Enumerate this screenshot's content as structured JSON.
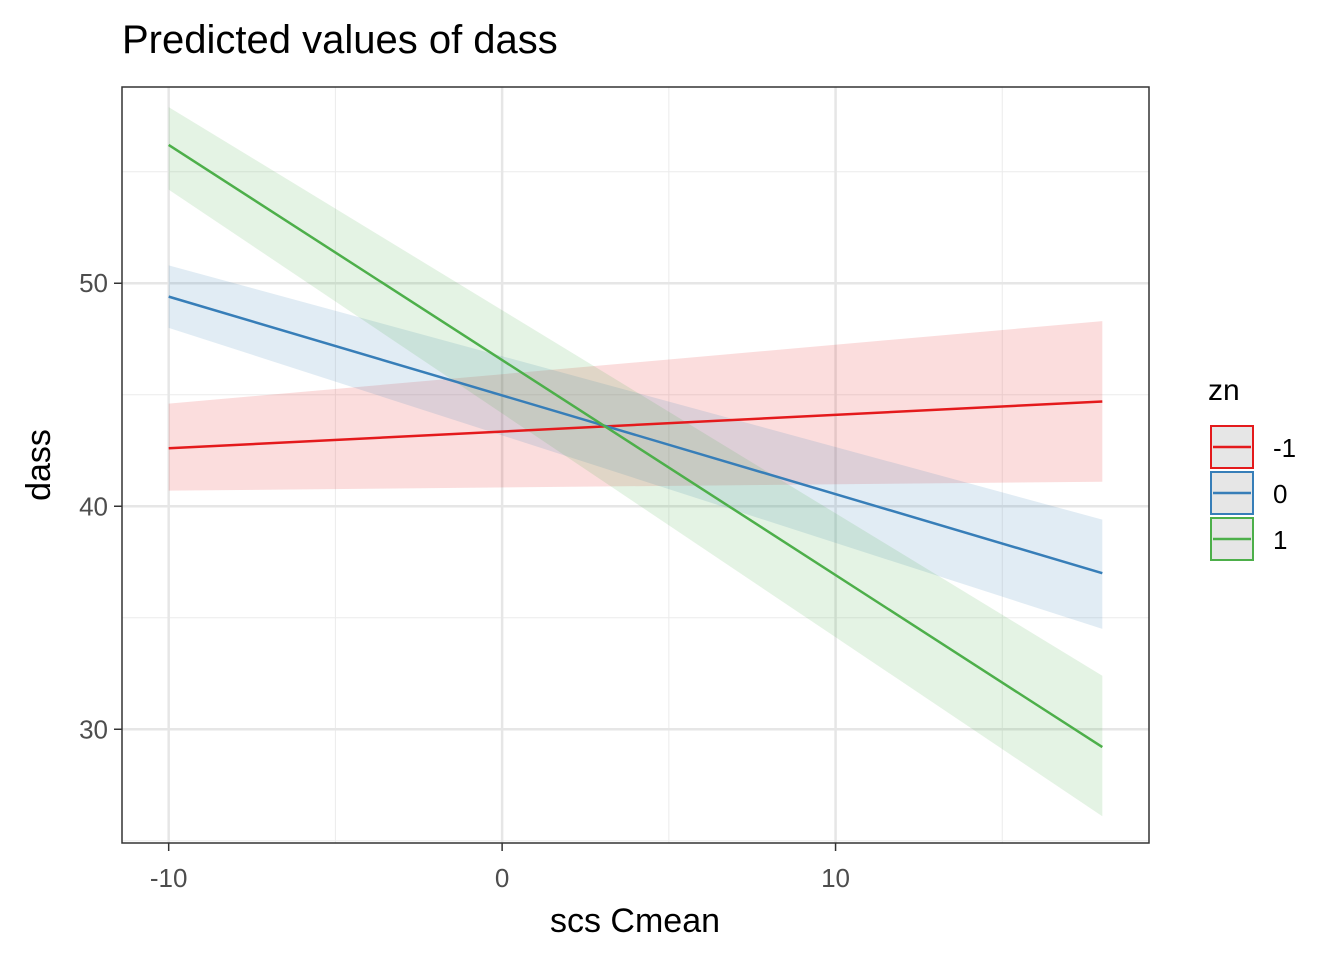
{
  "chart_data": {
    "type": "line",
    "title": "Predicted values of dass",
    "xlabel": "scs Cmean",
    "ylabel": "dass",
    "xlim": [
      -11.4,
      19.4
    ],
    "ylim": [
      24.9,
      58.8
    ],
    "x_ticks": [
      -10,
      0,
      10
    ],
    "x_tick_labels": [
      "-10",
      "0",
      "10"
    ],
    "x_minor_ticks": [
      -5,
      5,
      15
    ],
    "y_ticks": [
      30,
      40,
      50
    ],
    "y_tick_labels": [
      "30",
      "40",
      "50"
    ],
    "y_minor_ticks": [
      25,
      35,
      45,
      55
    ],
    "grid": true,
    "legend": {
      "title": "zn",
      "position": "right"
    },
    "series": [
      {
        "name": "-1",
        "color": "#E41A1C",
        "x": [
          -10,
          18
        ],
        "y": [
          42.6,
          44.7
        ],
        "lower": [
          40.7,
          41.1
        ],
        "upper": [
          44.6,
          48.3
        ]
      },
      {
        "name": "0",
        "color": "#377EB8",
        "x": [
          -10,
          18
        ],
        "y": [
          49.4,
          37.0
        ],
        "lower": [
          48.0,
          34.5
        ],
        "upper": [
          50.8,
          39.4
        ]
      },
      {
        "name": "1",
        "color": "#4DAF4A",
        "x": [
          -10,
          18
        ],
        "y": [
          56.2,
          29.2
        ],
        "lower": [
          54.2,
          26.1
        ],
        "upper": [
          57.9,
          32.4
        ]
      }
    ]
  }
}
